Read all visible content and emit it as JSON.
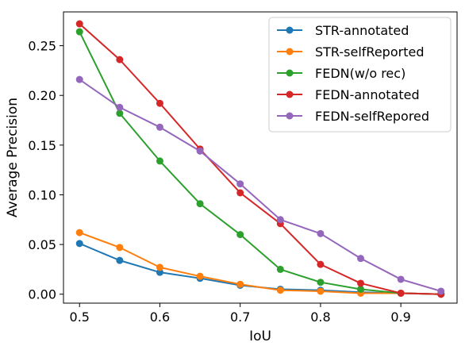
{
  "chart_data": {
    "type": "line",
    "title": "",
    "xlabel": "IoU",
    "ylabel": "Average Precision",
    "x": [
      0.5,
      0.55,
      0.6,
      0.65,
      0.7,
      0.75,
      0.8,
      0.85,
      0.9,
      0.95
    ],
    "xlim": [
      0.48,
      0.97
    ],
    "ylim": [
      -0.009,
      0.284
    ],
    "xticks": [
      0.5,
      0.6,
      0.7,
      0.8,
      0.9
    ],
    "xtick_labels": [
      "0.5",
      "0.6",
      "0.7",
      "0.8",
      "0.9"
    ],
    "yticks": [
      0.0,
      0.05,
      0.1,
      0.15,
      0.2,
      0.25
    ],
    "ytick_labels": [
      "0.00",
      "0.05",
      "0.10",
      "0.15",
      "0.20",
      "0.25"
    ],
    "grid": false,
    "legend_position": "top-right",
    "series": [
      {
        "name": "STR-annotated",
        "color": "#1f77b4",
        "values": [
          0.051,
          0.034,
          0.022,
          0.016,
          0.009,
          0.005,
          0.004,
          0.002,
          0.001,
          0.0
        ]
      },
      {
        "name": "STR-selfReported",
        "color": "#ff7f0e",
        "values": [
          0.062,
          0.047,
          0.027,
          0.018,
          0.01,
          0.004,
          0.003,
          0.001,
          0.001,
          0.0
        ]
      },
      {
        "name": "FEDN(w/o rec)",
        "color": "#2ca02c",
        "values": [
          0.264,
          0.182,
          0.134,
          0.091,
          0.06,
          0.025,
          0.012,
          0.005,
          0.001,
          0.0
        ]
      },
      {
        "name": "FEDN-annotated",
        "color": "#d62728",
        "values": [
          0.272,
          0.236,
          0.192,
          0.146,
          0.102,
          0.071,
          0.03,
          0.011,
          0.001,
          0.0
        ]
      },
      {
        "name": "FEDN-selfRepored",
        "color": "#9467bd",
        "values": [
          0.216,
          0.188,
          0.168,
          0.144,
          0.111,
          0.075,
          0.061,
          0.036,
          0.015,
          0.003
        ]
      }
    ]
  }
}
